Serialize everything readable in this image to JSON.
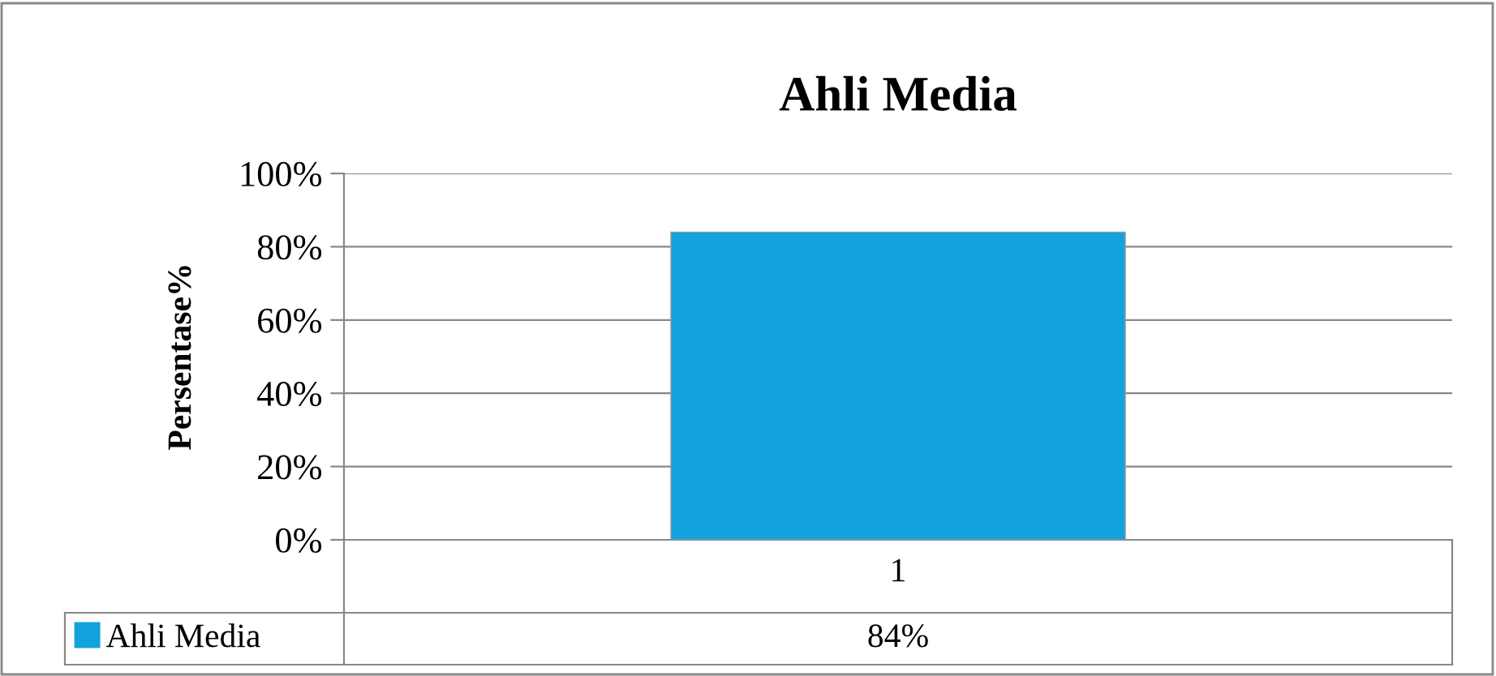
{
  "chart_data": {
    "type": "bar",
    "title": "Ahli Media",
    "ylabel": "Persentase%",
    "categories": [
      "1"
    ],
    "series": [
      {
        "name": "Ahli Media",
        "color": "#12a2dc",
        "values": [
          84
        ]
      }
    ],
    "value_labels": [
      "84%"
    ],
    "ylim": [
      0,
      100
    ],
    "yticks": [
      {
        "value": 0,
        "label": "0%"
      },
      {
        "value": 20,
        "label": "20%"
      },
      {
        "value": 40,
        "label": "40%"
      },
      {
        "value": 60,
        "label": "60%"
      },
      {
        "value": 80,
        "label": "80%"
      },
      {
        "value": 100,
        "label": "100%"
      }
    ],
    "grid": "y",
    "legend": "bottom left"
  }
}
